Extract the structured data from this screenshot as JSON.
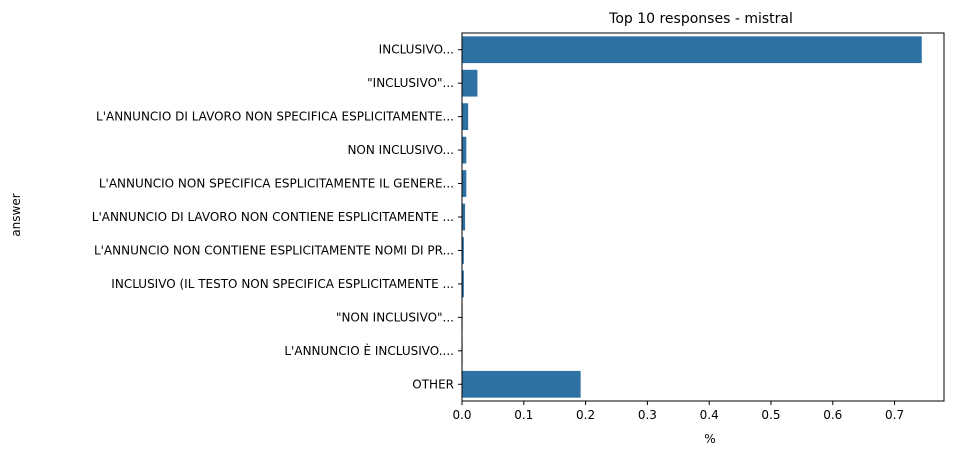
{
  "chart_data": {
    "type": "bar",
    "orientation": "horizontal",
    "title": "Top 10 responses - mistral",
    "xlabel": "%",
    "ylabel": "answer",
    "xlim": [
      0,
      0.78
    ],
    "xticks": [
      "0.0",
      "0.1",
      "0.2",
      "0.3",
      "0.4",
      "0.5",
      "0.6",
      "0.7"
    ],
    "xtick_values": [
      0.0,
      0.1,
      0.2,
      0.3,
      0.4,
      0.5,
      0.6,
      0.7
    ],
    "grid": false,
    "color": "#2e72a4",
    "categories": [
      " INCLUSIVO...",
      "\"INCLUSIVO\"...",
      " L'ANNUNCIO DI LAVORO NON SPECIFICA ESPLICITAMENTE...",
      " NON INCLUSIVO...",
      " L'ANNUNCIO NON SPECIFICA ESPLICITAMENTE IL GENERE...",
      " L'ANNUNCIO DI LAVORO NON CONTIENE ESPLICITAMENTE ...",
      " L'ANNUNCIO NON CONTIENE ESPLICITAMENTE NOMI DI PR...",
      " INCLUSIVO (IL TESTO NON SPECIFICA ESPLICITAMENTE ...",
      "\"NON INCLUSIVO\"...",
      " L'ANNUNCIO È INCLUSIVO....",
      "OTHER"
    ],
    "values": [
      0.744,
      0.025,
      0.01,
      0.007,
      0.007,
      0.005,
      0.003,
      0.003,
      0.001,
      0.001,
      0.192
    ]
  }
}
